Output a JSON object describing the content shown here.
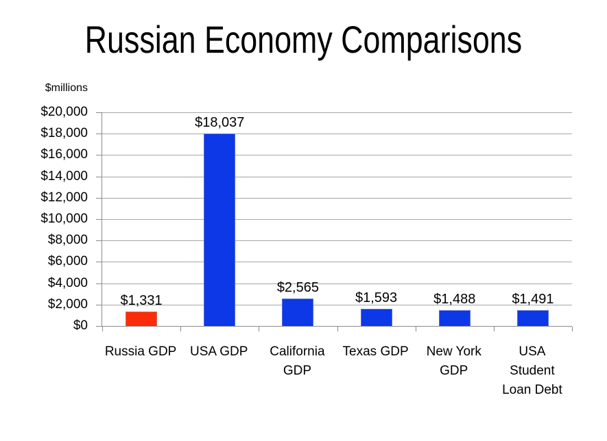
{
  "title": "Russian Economy Comparisons",
  "colors": {
    "background": "#ffffff",
    "gridline": "#a6a6a6",
    "axis": "#8a8a8a",
    "text": "#000000",
    "russia_bar": "#fb2c09",
    "default_bar": "#0d38e8"
  },
  "chart_data": {
    "type": "bar",
    "title": "Russian Economy Comparisons",
    "unit_label": "$millions",
    "xlabel": "",
    "ylabel": "$millions",
    "categories": [
      "Russia GDP",
      "USA GDP",
      "California GDP",
      "Texas GDP",
      "New York GDP",
      "USA Student Loan Debt"
    ],
    "category_label_lines": [
      [
        "Russia GDP"
      ],
      [
        "USA GDP"
      ],
      [
        "California",
        "GDP"
      ],
      [
        "Texas GDP"
      ],
      [
        "New York",
        "GDP"
      ],
      [
        "USA",
        "Student",
        "Loan Debt"
      ]
    ],
    "values": [
      1331,
      18037,
      2565,
      1593,
      1488,
      1491
    ],
    "value_labels": [
      "$1,331",
      "$18,037",
      "$2,565",
      "$1,593",
      "$1,488",
      "$1,491"
    ],
    "bar_colors": [
      "#fb2c09",
      "#0d38e8",
      "#0d38e8",
      "#0d38e8",
      "#0d38e8",
      "#0d38e8"
    ],
    "ylim": [
      0,
      20000
    ],
    "ytick_step": 2000,
    "ytick_labels": [
      "$0",
      "$2,000",
      "$4,000",
      "$6,000",
      "$8,000",
      "$10,000",
      "$12,000",
      "$14,000",
      "$16,000",
      "$18,000",
      "$20,000"
    ],
    "grid": true,
    "legend": "none"
  }
}
